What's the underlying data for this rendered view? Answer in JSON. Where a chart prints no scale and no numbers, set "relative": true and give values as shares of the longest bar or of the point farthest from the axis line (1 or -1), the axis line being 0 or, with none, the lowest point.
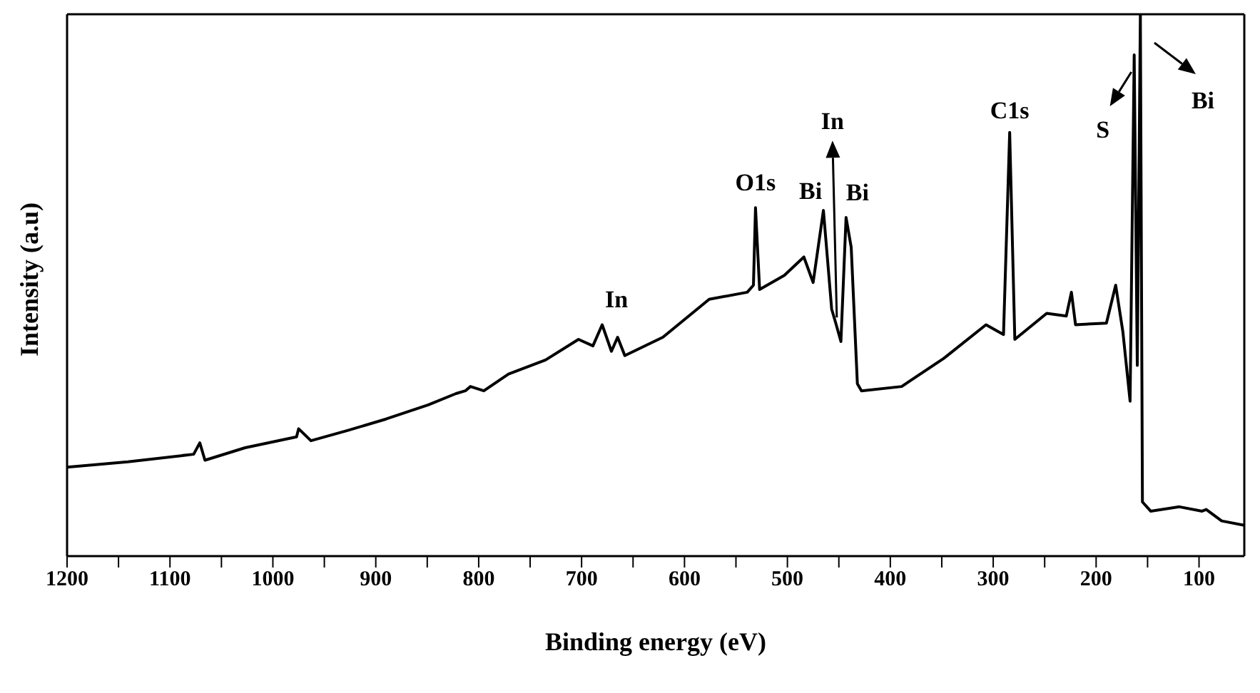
{
  "chart_data": {
    "type": "line",
    "relative": true,
    "xlabel": "Binding energy (eV)",
    "ylabel": "Intensity (a.u)",
    "marker": "none",
    "line_style": "solid",
    "xlim": [
      1200,
      56
    ],
    "xticks": [
      1200,
      {
        "value": 1150,
        "label": null
      },
      1100,
      {
        "value": 1050,
        "label": null
      },
      1000,
      {
        "value": 950,
        "label": null
      },
      900,
      {
        "value": 850,
        "label": null
      },
      800,
      {
        "value": 750,
        "label": null
      },
      700,
      {
        "value": 650,
        "label": null
      },
      600,
      {
        "value": 550,
        "label": null
      },
      500,
      {
        "value": 450,
        "label": null
      },
      400,
      {
        "value": 350,
        "label": null
      },
      300,
      {
        "value": 250,
        "label": null
      },
      200,
      {
        "value": 150,
        "label": null
      },
      100
    ],
    "x": [
      1200,
      1141,
      1077,
      1071,
      1066,
      1027,
      977,
      975,
      963,
      927,
      890,
      849,
      822,
      813,
      808,
      795,
      771,
      735,
      703,
      689,
      680,
      671,
      665,
      658,
      621,
      576,
      539,
      533,
      531,
      527,
      503,
      484,
      475,
      465,
      457,
      453,
      448,
      443,
      438,
      432,
      428,
      389,
      348,
      307,
      290,
      284,
      279,
      248,
      229,
      224,
      220,
      190,
      181,
      174,
      167,
      163,
      160,
      157,
      155,
      147,
      119,
      97,
      93,
      78,
      56
    ],
    "series": [
      {
        "color": "#000000",
        "values": [
          0.164,
          0.174,
          0.188,
          0.209,
          0.177,
          0.2,
          0.22,
          0.235,
          0.213,
          0.232,
          0.253,
          0.279,
          0.3,
          0.305,
          0.313,
          0.305,
          0.336,
          0.362,
          0.4,
          0.388,
          0.427,
          0.378,
          0.404,
          0.37,
          0.404,
          0.474,
          0.487,
          0.5,
          0.643,
          0.492,
          0.518,
          0.552,
          0.505,
          0.638,
          0.456,
          0.43,
          0.396,
          0.625,
          0.57,
          0.318,
          0.305,
          0.313,
          0.365,
          0.427,
          0.409,
          0.782,
          0.4,
          0.448,
          0.443,
          0.487,
          0.427,
          0.43,
          0.5,
          0.414,
          0.286,
          0.925,
          0.352,
          1,
          0.1,
          0.083,
          0.091,
          0.083,
          0.086,
          0.065,
          0.057
        ]
      }
    ],
    "annotations": [
      {
        "text": "In",
        "x": 680,
        "y": 0.427
      },
      {
        "text": "O1s",
        "x": 531,
        "y": 0.643
      },
      {
        "text": "Bi",
        "x": 465,
        "y": 0.638
      },
      {
        "text": "In",
        "x": 452,
        "y": 0.43
      },
      {
        "text": "Bi",
        "x": 443,
        "y": 0.625
      },
      {
        "text": "C1s",
        "x": 284,
        "y": 0.782
      },
      {
        "text": "S",
        "x": 163,
        "y": 0.925
      },
      "Bi"
    ]
  }
}
